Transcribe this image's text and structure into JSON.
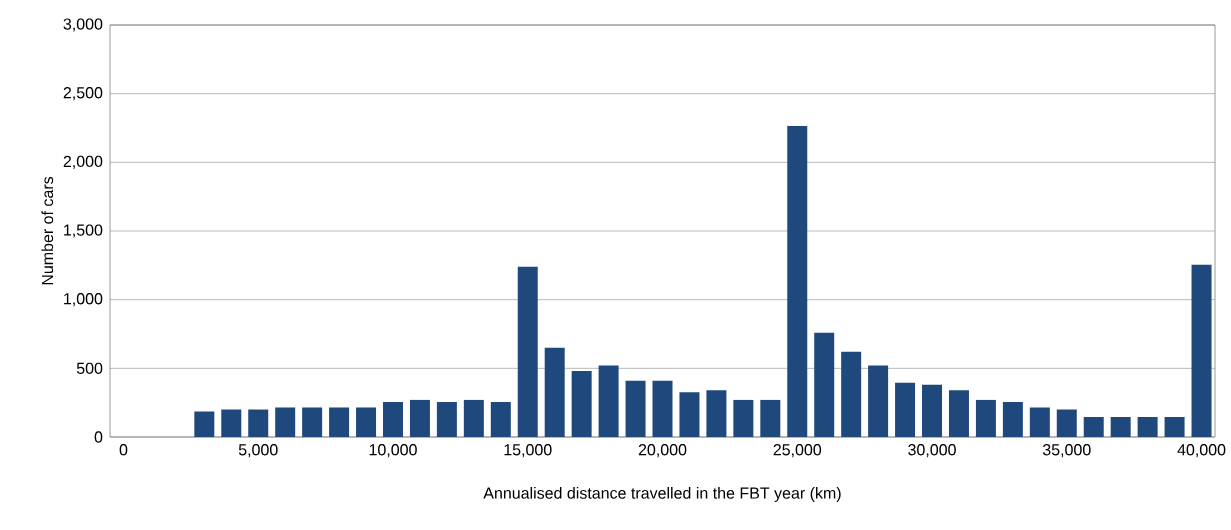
{
  "chart_data": {
    "type": "bar",
    "xlabel": "Annualised distance travelled in the FBT year (km)",
    "ylabel": "Number of cars",
    "categories": [
      "0",
      null,
      null,
      null,
      null,
      "5,000",
      null,
      null,
      null,
      null,
      "10,000",
      null,
      null,
      null,
      null,
      "15,000",
      null,
      null,
      null,
      null,
      "20,000",
      null,
      null,
      null,
      null,
      "25,000",
      null,
      null,
      null,
      null,
      "30,000",
      null,
      null,
      null,
      null,
      "35,000",
      null,
      null,
      null,
      null,
      "40,000"
    ],
    "values": [
      0,
      0,
      0,
      185,
      200,
      200,
      215,
      215,
      215,
      215,
      255,
      270,
      255,
      270,
      255,
      1240,
      650,
      480,
      520,
      410,
      410,
      325,
      340,
      270,
      270,
      2265,
      760,
      620,
      520,
      395,
      380,
      340,
      270,
      255,
      215,
      200,
      145,
      145,
      145,
      145,
      1255
    ],
    "color": "#1f497d",
    "ylim": [
      0,
      3000
    ],
    "yticks": [
      {
        "value": 0,
        "label": "0"
      },
      {
        "value": 500,
        "label": "500"
      },
      {
        "value": 1000,
        "label": "1,000"
      },
      {
        "value": 1500,
        "label": "1,500"
      },
      {
        "value": 2000,
        "label": "2,000"
      },
      {
        "value": 2500,
        "label": "2,500"
      },
      {
        "value": 3000,
        "label": "3,000"
      }
    ],
    "grid": "y"
  }
}
